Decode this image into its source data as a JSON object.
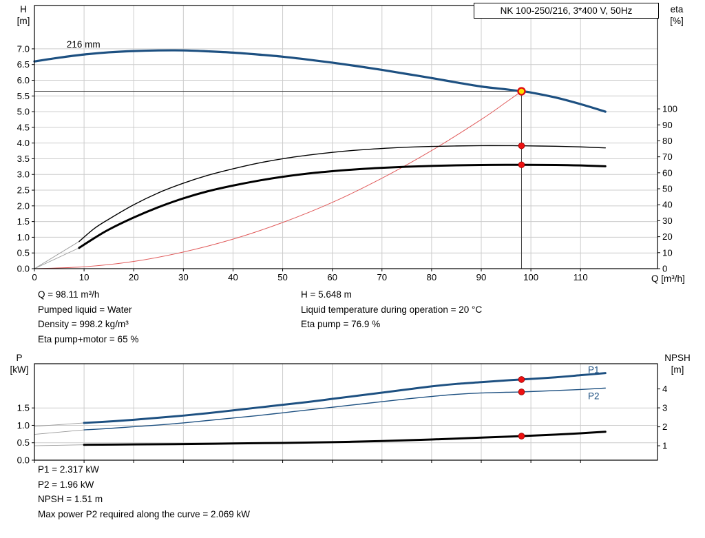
{
  "title_box": "NK 100-250/216, 3*400 V, 50Hz",
  "labels": {
    "h": [
      "H",
      "[m]"
    ],
    "eta": [
      "eta",
      "[%]"
    ],
    "q": "Q [m³/h]",
    "p": [
      "P",
      "[kW]"
    ],
    "npsh": [
      "NPSH",
      "[m]"
    ]
  },
  "info_top": {
    "col1": [
      "Q = 98.11 m³/h",
      "Pumped liquid = Water",
      "Density = 998.2 kg/m³",
      "Eta pump+motor = 65 %"
    ],
    "col2": [
      "H = 5.648 m",
      "Liquid temperature during operation = 20 °C",
      "Eta pump = 76.9 %"
    ]
  },
  "info_bottom": [
    "P1 = 2.317 kW",
    "P2 = 1.96 kW",
    "NPSH = 1.51 m",
    "Max power P2 required along the curve = 2.069 kW"
  ],
  "colors": {
    "curve_blue": "#1d5081",
    "curve_black": "#000000",
    "system_red": "#e05a5a",
    "dot_red": "#ee1111",
    "dot_red_edge": "#990000",
    "op_yellow": "#ffdf00",
    "op_ring_red": "#e01010",
    "grid": "#cccccc",
    "axis": "#000000",
    "crosshair": "#444444",
    "lead": "#999999"
  },
  "chart_data": [
    {
      "id": "hq-eta-chart",
      "type": "line",
      "title": "Pump head and efficiency vs flow",
      "x_axis": {
        "label": "Q [m³/h]",
        "min": 0,
        "max": 125.5,
        "ticks": [
          0,
          10,
          20,
          30,
          40,
          50,
          60,
          70,
          80,
          90,
          100,
          110
        ],
        "show_tick_labels": true
      },
      "left_axis": {
        "label": "H [m]",
        "min": 0,
        "max": 8.38,
        "ticks": [
          0,
          0.5,
          1,
          1.5,
          2,
          2.5,
          3,
          3.5,
          4,
          4.5,
          5,
          5.5,
          6,
          6.5,
          7
        ],
        "decimals": 1
      },
      "right_axis": {
        "label": "eta [%]",
        "min": 0,
        "max": 164.7,
        "ticks": [
          0,
          10,
          20,
          30,
          40,
          50,
          60,
          70,
          80,
          90,
          100
        ],
        "decimals": 0
      },
      "grid": true,
      "series": [
        {
          "name": "system-curve",
          "axis": "left",
          "color": "#e05a5a",
          "width": 1,
          "points": [
            [
              0,
              0
            ],
            [
              10,
              0.06
            ],
            [
              20,
              0.23
            ],
            [
              30,
              0.53
            ],
            [
              40,
              0.94
            ],
            [
              50,
              1.47
            ],
            [
              60,
              2.11
            ],
            [
              70,
              2.88
            ],
            [
              80,
              3.76
            ],
            [
              90,
              4.75
            ],
            [
              95,
              5.3
            ],
            [
              98.11,
              5.648
            ]
          ]
        },
        {
          "name": "eta-pump-curve",
          "axis": "right",
          "color": "#000000",
          "width": 1.4,
          "lead_from": [
            0,
            0
          ],
          "points": [
            [
              9,
              17
            ],
            [
              12,
              25
            ],
            [
              15,
              31
            ],
            [
              20,
              40
            ],
            [
              25,
              47.5
            ],
            [
              30,
              53.5
            ],
            [
              35,
              58.5
            ],
            [
              40,
              62.5
            ],
            [
              45,
              66
            ],
            [
              50,
              68.8
            ],
            [
              55,
              71
            ],
            [
              60,
              72.8
            ],
            [
              65,
              74.2
            ],
            [
              70,
              75.2
            ],
            [
              75,
              76
            ],
            [
              80,
              76.5
            ],
            [
              85,
              76.8
            ],
            [
              90,
              77
            ],
            [
              95,
              77
            ],
            [
              98.11,
              76.9
            ],
            [
              105,
              76.6
            ],
            [
              110,
              76.2
            ],
            [
              115,
              75.6
            ]
          ]
        },
        {
          "name": "eta-pump-motor-curve",
          "axis": "right",
          "color": "#000000",
          "width": 3,
          "lead_from": [
            0,
            0
          ],
          "points": [
            [
              9,
              13
            ],
            [
              12,
              19
            ],
            [
              15,
              24.5
            ],
            [
              20,
              32
            ],
            [
              25,
              38.5
            ],
            [
              30,
              44
            ],
            [
              35,
              48.5
            ],
            [
              40,
              52
            ],
            [
              45,
              55
            ],
            [
              50,
              57.5
            ],
            [
              55,
              59.5
            ],
            [
              60,
              61
            ],
            [
              65,
              62.2
            ],
            [
              70,
              63.1
            ],
            [
              75,
              63.8
            ],
            [
              80,
              64.3
            ],
            [
              85,
              64.7
            ],
            [
              90,
              64.9
            ],
            [
              95,
              65
            ],
            [
              98.11,
              65
            ],
            [
              105,
              64.9
            ],
            [
              110,
              64.6
            ],
            [
              115,
              64.1
            ]
          ]
        },
        {
          "name": "head-curve-216mm",
          "axis": "left",
          "color": "#1d5081",
          "width": 3.2,
          "points": [
            [
              0,
              6.6
            ],
            [
              5,
              6.72
            ],
            [
              10,
              6.82
            ],
            [
              15,
              6.89
            ],
            [
              20,
              6.93
            ],
            [
              25,
              6.95
            ],
            [
              30,
              6.95
            ],
            [
              35,
              6.92
            ],
            [
              40,
              6.88
            ],
            [
              45,
              6.82
            ],
            [
              50,
              6.75
            ],
            [
              55,
              6.66
            ],
            [
              60,
              6.56
            ],
            [
              65,
              6.45
            ],
            [
              70,
              6.33
            ],
            [
              75,
              6.2
            ],
            [
              80,
              6.07
            ],
            [
              85,
              5.93
            ],
            [
              90,
              5.8
            ],
            [
              95,
              5.71
            ],
            [
              98.11,
              5.648
            ],
            [
              100,
              5.61
            ],
            [
              105,
              5.45
            ],
            [
              110,
              5.24
            ],
            [
              115,
              5.0
            ]
          ]
        }
      ],
      "annotations": {
        "curve_label": {
          "text": "216 mm",
          "axis": "left",
          "x": 6.5,
          "y": 7.04,
          "color": "#000000"
        },
        "crosshair": {
          "x": 98.11,
          "y": 5.648
        },
        "dots": [
          {
            "axis": "right",
            "x": 98.11,
            "y": 76.9
          },
          {
            "axis": "right",
            "x": 98.11,
            "y": 65
          }
        ],
        "operating_point": {
          "x": 98.11,
          "y": 5.648
        }
      }
    },
    {
      "id": "power-npsh-chart",
      "type": "line",
      "title": "Power and NPSH vs flow",
      "x_axis": {
        "label": "",
        "min": 0,
        "max": 125.5,
        "ticks": [
          0,
          10,
          20,
          30,
          40,
          50,
          60,
          70,
          80,
          90,
          100,
          110
        ],
        "show_tick_labels": false
      },
      "left_axis": {
        "label": "P [kW]",
        "min": 0,
        "max": 2.77,
        "ticks": [
          0,
          0.5,
          1,
          1.5
        ],
        "decimals": 1
      },
      "right_axis": {
        "label": "NPSH [m]",
        "min": 0.24,
        "max": 5.33,
        "ticks": [
          1,
          2,
          3,
          4
        ],
        "decimals": 0
      },
      "grid": true,
      "series": [
        {
          "name": "p1-curve",
          "axis": "left",
          "color": "#1d5081",
          "width": 3,
          "lead_from": [
            0,
            0.97
          ],
          "points": [
            [
              10,
              1.07
            ],
            [
              15,
              1.11
            ],
            [
              20,
              1.16
            ],
            [
              25,
              1.22
            ],
            [
              30,
              1.28
            ],
            [
              35,
              1.35
            ],
            [
              40,
              1.43
            ],
            [
              45,
              1.51
            ],
            [
              50,
              1.59
            ],
            [
              55,
              1.67
            ],
            [
              60,
              1.76
            ],
            [
              65,
              1.85
            ],
            [
              70,
              1.94
            ],
            [
              75,
              2.03
            ],
            [
              80,
              2.12
            ],
            [
              85,
              2.19
            ],
            [
              90,
              2.24
            ],
            [
              95,
              2.29
            ],
            [
              98.11,
              2.317
            ],
            [
              105,
              2.38
            ],
            [
              110,
              2.44
            ],
            [
              115,
              2.5
            ]
          ]
        },
        {
          "name": "p2-curve",
          "axis": "left",
          "color": "#1d5081",
          "width": 1.4,
          "lead_from": [
            0,
            0.74
          ],
          "points": [
            [
              10,
              0.87
            ],
            [
              15,
              0.91
            ],
            [
              20,
              0.96
            ],
            [
              25,
              1.01
            ],
            [
              30,
              1.07
            ],
            [
              35,
              1.14
            ],
            [
              40,
              1.21
            ],
            [
              45,
              1.28
            ],
            [
              50,
              1.36
            ],
            [
              55,
              1.44
            ],
            [
              60,
              1.52
            ],
            [
              65,
              1.6
            ],
            [
              70,
              1.68
            ],
            [
              75,
              1.76
            ],
            [
              80,
              1.83
            ],
            [
              85,
              1.89
            ],
            [
              90,
              1.93
            ],
            [
              95,
              1.95
            ],
            [
              98.11,
              1.96
            ],
            [
              105,
              2.0
            ],
            [
              110,
              2.03
            ],
            [
              115,
              2.07
            ]
          ]
        },
        {
          "name": "npsh-curve",
          "axis": "right",
          "color": "#000000",
          "width": 3,
          "lead_from": [
            0,
            1.0
          ],
          "points": [
            [
              10,
              1.05
            ],
            [
              20,
              1.07
            ],
            [
              30,
              1.09
            ],
            [
              40,
              1.12
            ],
            [
              50,
              1.15
            ],
            [
              60,
              1.19
            ],
            [
              70,
              1.25
            ],
            [
              80,
              1.33
            ],
            [
              90,
              1.43
            ],
            [
              98.11,
              1.51
            ],
            [
              105,
              1.59
            ],
            [
              110,
              1.66
            ],
            [
              115,
              1.74
            ]
          ]
        }
      ],
      "annotations": {
        "dots": [
          {
            "axis": "left",
            "x": 98.11,
            "y": 2.317
          },
          {
            "axis": "left",
            "x": 98.11,
            "y": 1.96
          },
          {
            "axis": "right",
            "x": 98.11,
            "y": 1.51
          }
        ],
        "series_labels": [
          {
            "text": "P1",
            "axis": "left",
            "x": 111.5,
            "y": 2.59,
            "color": "#1d5081"
          },
          {
            "text": "P2",
            "axis": "left",
            "x": 111.5,
            "y": 1.84,
            "color": "#1d5081"
          }
        ]
      }
    }
  ]
}
